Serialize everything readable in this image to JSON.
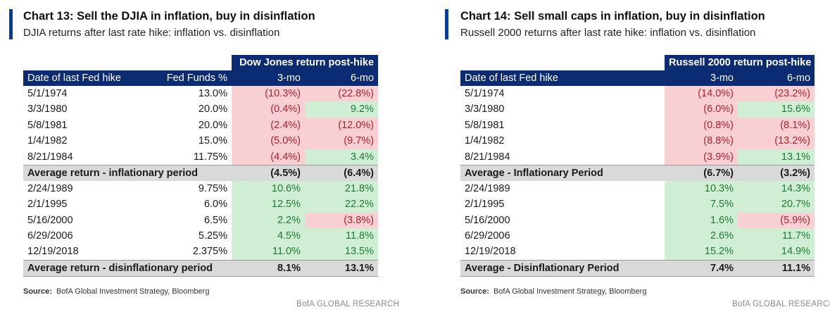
{
  "left": {
    "title": "Chart 13: Sell the DJIA in inflation, buy in disinflation",
    "subtitle": "DJIA returns after last rate hike: inflation vs. disinflation",
    "band": "Dow Jones return post-hike",
    "headers": [
      "Date of last Fed hike",
      "Fed Funds %",
      "3-mo",
      "6-mo"
    ],
    "inflation_rows": [
      {
        "date": "5/1/1974",
        "ff": "13.0%",
        "m3": "(10.3%)",
        "m6": "(22.8%)",
        "c3": "neg",
        "c6": "neg"
      },
      {
        "date": "3/3/1980",
        "ff": "20.0%",
        "m3": "(0.4%)",
        "m6": "9.2%",
        "c3": "neg",
        "c6": "pos"
      },
      {
        "date": "5/8/1981",
        "ff": "20.0%",
        "m3": "(2.4%)",
        "m6": "(12.0%)",
        "c3": "neg",
        "c6": "neg"
      },
      {
        "date": "1/4/1982",
        "ff": "15.0%",
        "m3": "(5.0%)",
        "m6": "(9.7%)",
        "c3": "neg",
        "c6": "neg"
      },
      {
        "date": "8/21/1984",
        "ff": "11.75%",
        "m3": "(4.4%)",
        "m6": "3.4%",
        "c3": "neg",
        "c6": "pos"
      }
    ],
    "avg_inflation": {
      "label": "Average return - inflationary period",
      "m3": "(4.5%)",
      "m6": "(6.4%)"
    },
    "disinflation_rows": [
      {
        "date": "2/24/1989",
        "ff": "9.75%",
        "m3": "10.6%",
        "m6": "21.8%",
        "c3": "pos",
        "c6": "pos"
      },
      {
        "date": "2/1/1995",
        "ff": "6.0%",
        "m3": "12.5%",
        "m6": "22.2%",
        "c3": "pos",
        "c6": "pos"
      },
      {
        "date": "5/16/2000",
        "ff": "6.5%",
        "m3": "2.2%",
        "m6": "(3.8%)",
        "c3": "pos",
        "c6": "neg"
      },
      {
        "date": "6/29/2006",
        "ff": "5.25%",
        "m3": "4.5%",
        "m6": "11.8%",
        "c3": "pos",
        "c6": "pos"
      },
      {
        "date": "12/19/2018",
        "ff": "2.375%",
        "m3": "11.0%",
        "m6": "13.5%",
        "c3": "pos",
        "c6": "pos"
      }
    ],
    "avg_disinflation": {
      "label": "Average return - disinflationary period",
      "m3": "8.1%",
      "m6": "13.1%"
    },
    "source_label": "Source:",
    "source_text": "BofA Global Investment Strategy, Bloomberg",
    "footer": "BofA GLOBAL RESEARCH"
  },
  "right": {
    "title": "Chart 14: Sell small caps in inflation, buy in disinflation",
    "subtitle": "Russell 2000 returns after last rate hike: inflation vs. disinflation",
    "band": "Russell 2000 return post-hike",
    "headers": [
      "Date of last Fed hike",
      "3-mo",
      "6-mo"
    ],
    "inflation_rows": [
      {
        "date": "5/1/1974",
        "m3": "(14.0%)",
        "m6": "(23.2%)",
        "c3": "neg",
        "c6": "neg"
      },
      {
        "date": "3/3/1980",
        "m3": "(6.0%)",
        "m6": "15.6%",
        "c3": "neg",
        "c6": "pos"
      },
      {
        "date": "5/8/1981",
        "m3": "(0.8%)",
        "m6": "(8.1%)",
        "c3": "neg",
        "c6": "neg"
      },
      {
        "date": "1/4/1982",
        "m3": "(8.8%)",
        "m6": "(13.2%)",
        "c3": "neg",
        "c6": "neg"
      },
      {
        "date": "8/21/1984",
        "m3": "(3.9%)",
        "m6": "13.1%",
        "c3": "neg",
        "c6": "pos"
      }
    ],
    "avg_inflation": {
      "label": "Average - Inflationary Period",
      "m3": "(6.7%)",
      "m6": "(3.2%)"
    },
    "disinflation_rows": [
      {
        "date": "2/24/1989",
        "m3": "10.3%",
        "m6": "14.3%",
        "c3": "pos",
        "c6": "pos"
      },
      {
        "date": "2/1/1995",
        "m3": "7.5%",
        "m6": "20.7%",
        "c3": "pos",
        "c6": "pos"
      },
      {
        "date": "5/16/2000",
        "m3": "1.6%",
        "m6": "(5.9%)",
        "c3": "pos",
        "c6": "neg"
      },
      {
        "date": "6/29/2006",
        "m3": "2.6%",
        "m6": "11.7%",
        "c3": "pos",
        "c6": "pos"
      },
      {
        "date": "12/19/2018",
        "m3": "15.2%",
        "m6": "14.9%",
        "c3": "pos",
        "c6": "pos"
      }
    ],
    "avg_disinflation": {
      "label": "Average - Disinflationary Period",
      "m3": "7.4%",
      "m6": "11.1%"
    },
    "source_label": "Source:",
    "source_text": "BofA Global Investment Strategy, Bloomberg",
    "footer": "BofA GLOBAL RESEARCH"
  },
  "colors": {
    "header_bg": "#0b2b72",
    "accent": "#0a3ca0",
    "negative_bg": "#f8cfd3",
    "negative_text": "#b3202c",
    "positive_bg": "#cfeed3",
    "positive_text": "#1f7a33",
    "average_bg": "#d9d9d9"
  }
}
